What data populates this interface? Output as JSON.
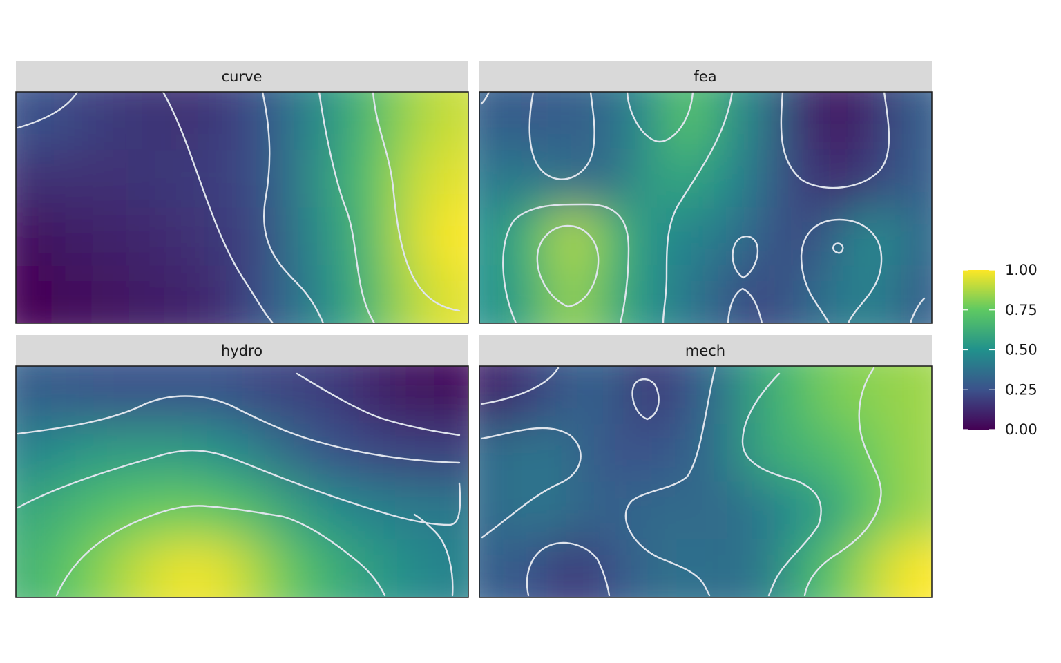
{
  "chart_data": {
    "type": "heatmap",
    "layout": "faceted 2x2 raster heatmap with contour lines",
    "colormap": "viridis",
    "contour_color": "#dfe4ec",
    "strip_background": "#d9d9d9",
    "grid": false,
    "facets": [
      {
        "name": "curve",
        "field": [
          [
            0.25,
            0.22,
            0.18,
            0.16,
            0.15,
            0.18,
            0.25,
            0.4,
            0.55,
            0.7,
            0.85,
            0.92
          ],
          [
            0.15,
            0.15,
            0.15,
            0.16,
            0.18,
            0.19,
            0.24,
            0.42,
            0.58,
            0.73,
            0.9,
            0.96
          ],
          [
            0.05,
            0.08,
            0.1,
            0.12,
            0.15,
            0.17,
            0.22,
            0.4,
            0.55,
            0.72,
            0.92,
            1.0
          ],
          [
            0.0,
            0.03,
            0.06,
            0.08,
            0.1,
            0.14,
            0.24,
            0.38,
            0.52,
            0.7,
            0.88,
            0.96
          ]
        ]
      },
      {
        "name": "fea",
        "field": [
          [
            0.3,
            0.28,
            0.3,
            0.35,
            0.5,
            0.75,
            0.55,
            0.4,
            0.15,
            0.05,
            0.15,
            0.3
          ],
          [
            0.4,
            0.4,
            0.35,
            0.35,
            0.55,
            0.6,
            0.5,
            0.35,
            0.2,
            0.1,
            0.2,
            0.3
          ],
          [
            0.5,
            0.7,
            0.9,
            0.7,
            0.5,
            0.45,
            0.4,
            0.3,
            0.2,
            0.35,
            0.5,
            0.35
          ],
          [
            0.5,
            0.65,
            0.85,
            0.65,
            0.5,
            0.4,
            0.3,
            0.2,
            0.3,
            0.4,
            0.45,
            0.3
          ]
        ]
      },
      {
        "name": "hydro",
        "field": [
          [
            0.3,
            0.28,
            0.26,
            0.26,
            0.26,
            0.26,
            0.22,
            0.2,
            0.18,
            0.1,
            0.06,
            0.04
          ],
          [
            0.45,
            0.52,
            0.55,
            0.55,
            0.55,
            0.5,
            0.42,
            0.32,
            0.25,
            0.22,
            0.2,
            0.2
          ],
          [
            0.6,
            0.66,
            0.72,
            0.76,
            0.77,
            0.74,
            0.66,
            0.56,
            0.48,
            0.44,
            0.42,
            0.4
          ],
          [
            0.65,
            0.75,
            0.84,
            0.93,
            0.98,
            0.96,
            0.85,
            0.72,
            0.62,
            0.55,
            0.48,
            0.44
          ]
        ]
      },
      {
        "name": "mech",
        "field": [
          [
            0.1,
            0.2,
            0.3,
            0.3,
            0.15,
            0.25,
            0.4,
            0.6,
            0.7,
            0.8,
            0.82,
            0.85
          ],
          [
            0.35,
            0.4,
            0.35,
            0.25,
            0.25,
            0.3,
            0.4,
            0.6,
            0.65,
            0.7,
            0.78,
            0.85
          ],
          [
            0.35,
            0.4,
            0.35,
            0.3,
            0.35,
            0.35,
            0.35,
            0.4,
            0.5,
            0.6,
            0.75,
            0.85
          ],
          [
            0.3,
            0.25,
            0.15,
            0.25,
            0.35,
            0.38,
            0.35,
            0.4,
            0.6,
            0.75,
            0.9,
            1.0
          ]
        ]
      }
    ],
    "legend": {
      "position": "right",
      "title": "",
      "ticks": [
        "1.00",
        "0.75",
        "0.50",
        "0.25",
        "0.00"
      ],
      "limits": [
        0,
        1
      ]
    }
  }
}
